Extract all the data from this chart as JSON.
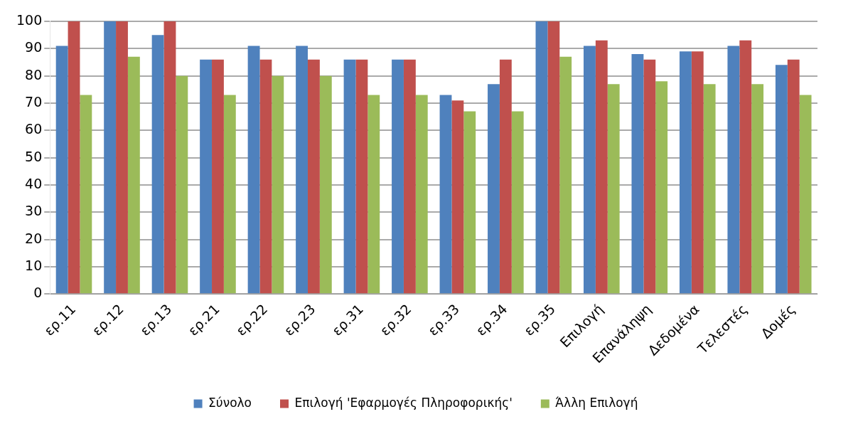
{
  "chart_data": {
    "type": "bar",
    "categories": [
      "ερ.11",
      "ερ.12",
      "ερ.13",
      "ερ.21",
      "ερ.22",
      "ερ.23",
      "ερ.31",
      "ερ.32",
      "ερ.33",
      "ερ.34",
      "ερ.35",
      "Επιλογή",
      "Επανάληψη",
      "Δεδομένα",
      "Τελεστές",
      "Δομές"
    ],
    "series": [
      {
        "name": "Σύνολο",
        "color": "#4f81bd",
        "values": [
          91,
          100,
          95,
          86,
          91,
          91,
          86,
          86,
          73,
          77,
          100,
          91,
          88,
          89,
          91,
          84
        ]
      },
      {
        "name": "Επιλογή 'Εφαρμογές Πληροφορικής'",
        "color": "#c0504d",
        "values": [
          100,
          100,
          100,
          86,
          86,
          86,
          86,
          86,
          71,
          86,
          100,
          93,
          86,
          89,
          93,
          86
        ]
      },
      {
        "name": "Άλλη Επιλογή",
        "color": "#9bbb59",
        "values": [
          73,
          87,
          80,
          73,
          80,
          80,
          73,
          73,
          67,
          67,
          87,
          77,
          78,
          77,
          77,
          73
        ]
      }
    ],
    "ylim": [
      0,
      100
    ],
    "yticks": [
      0,
      10,
      20,
      30,
      40,
      50,
      60,
      70,
      80,
      90,
      100
    ],
    "grid": "y",
    "legend": "bottom"
  }
}
